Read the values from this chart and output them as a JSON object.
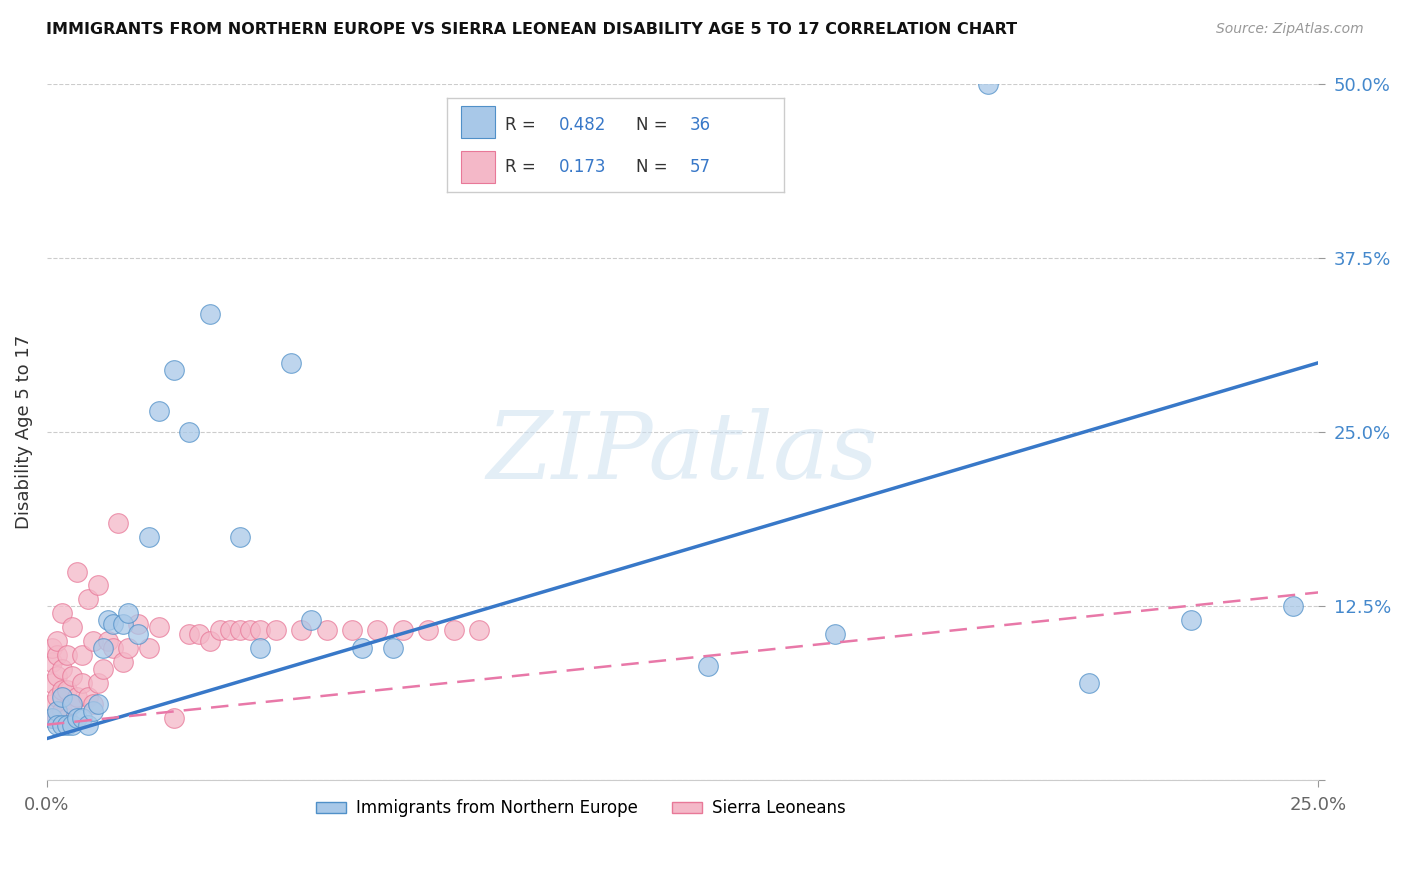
{
  "title": "IMMIGRANTS FROM NORTHERN EUROPE VS SIERRA LEONEAN DISABILITY AGE 5 TO 17 CORRELATION CHART",
  "source": "Source: ZipAtlas.com",
  "ylabel": "Disability Age 5 to 17",
  "ytick_labels": [
    "",
    "12.5%",
    "25.0%",
    "37.5%",
    "50.0%"
  ],
  "ytick_vals": [
    0.0,
    0.125,
    0.25,
    0.375,
    0.5
  ],
  "xtick_vals": [
    0.0,
    0.25
  ],
  "xtick_labels": [
    "0.0%",
    "25.0%"
  ],
  "xlim": [
    0.0,
    0.25
  ],
  "ylim": [
    0.0,
    0.5
  ],
  "blue_R": "0.482",
  "blue_N": "36",
  "pink_R": "0.173",
  "pink_N": "57",
  "blue_fill_color": "#a8c8e8",
  "pink_fill_color": "#f4b8c8",
  "blue_edge_color": "#5090c8",
  "pink_edge_color": "#e87898",
  "blue_line_color": "#3878c8",
  "pink_line_color": "#e878a8",
  "tick_color": "#4488cc",
  "legend_blue_label": "Immigrants from Northern Europe",
  "legend_pink_label": "Sierra Leoneans",
  "watermark_text": "ZIPatlas",
  "blue_line_x0": 0.0,
  "blue_line_y0": 0.03,
  "blue_line_x1": 0.25,
  "blue_line_y1": 0.3,
  "pink_line_x0": 0.0,
  "pink_line_y0": 0.04,
  "pink_line_x1": 0.25,
  "pink_line_y1": 0.135,
  "blue_points_x": [
    0.001,
    0.002,
    0.002,
    0.003,
    0.003,
    0.004,
    0.005,
    0.005,
    0.006,
    0.007,
    0.008,
    0.009,
    0.01,
    0.011,
    0.012,
    0.013,
    0.015,
    0.016,
    0.018,
    0.02,
    0.022,
    0.025,
    0.028,
    0.032,
    0.038,
    0.042,
    0.048,
    0.052,
    0.062,
    0.068,
    0.13,
    0.155,
    0.185,
    0.205,
    0.225,
    0.245
  ],
  "blue_points_y": [
    0.045,
    0.05,
    0.04,
    0.06,
    0.04,
    0.04,
    0.055,
    0.04,
    0.045,
    0.045,
    0.04,
    0.05,
    0.055,
    0.095,
    0.115,
    0.112,
    0.112,
    0.12,
    0.105,
    0.175,
    0.265,
    0.295,
    0.25,
    0.335,
    0.175,
    0.095,
    0.3,
    0.115,
    0.095,
    0.095,
    0.082,
    0.105,
    0.5,
    0.07,
    0.115,
    0.125
  ],
  "pink_points_x": [
    0.001,
    0.001,
    0.001,
    0.001,
    0.001,
    0.002,
    0.002,
    0.002,
    0.002,
    0.002,
    0.003,
    0.003,
    0.003,
    0.003,
    0.004,
    0.004,
    0.004,
    0.005,
    0.005,
    0.005,
    0.006,
    0.006,
    0.007,
    0.007,
    0.008,
    0.008,
    0.009,
    0.009,
    0.01,
    0.01,
    0.011,
    0.012,
    0.013,
    0.014,
    0.015,
    0.016,
    0.018,
    0.02,
    0.022,
    0.025,
    0.028,
    0.03,
    0.032,
    0.034,
    0.036,
    0.038,
    0.04,
    0.042,
    0.045,
    0.05,
    0.055,
    0.06,
    0.065,
    0.07,
    0.075,
    0.08,
    0.085
  ],
  "pink_points_y": [
    0.045,
    0.055,
    0.07,
    0.085,
    0.095,
    0.045,
    0.06,
    0.075,
    0.09,
    0.1,
    0.05,
    0.065,
    0.08,
    0.12,
    0.045,
    0.065,
    0.09,
    0.055,
    0.075,
    0.11,
    0.06,
    0.15,
    0.07,
    0.09,
    0.06,
    0.13,
    0.055,
    0.1,
    0.07,
    0.14,
    0.08,
    0.1,
    0.095,
    0.185,
    0.085,
    0.095,
    0.112,
    0.095,
    0.11,
    0.045,
    0.105,
    0.105,
    0.1,
    0.108,
    0.108,
    0.108,
    0.108,
    0.108,
    0.108,
    0.108,
    0.108,
    0.108,
    0.108,
    0.108,
    0.108,
    0.108,
    0.108
  ]
}
